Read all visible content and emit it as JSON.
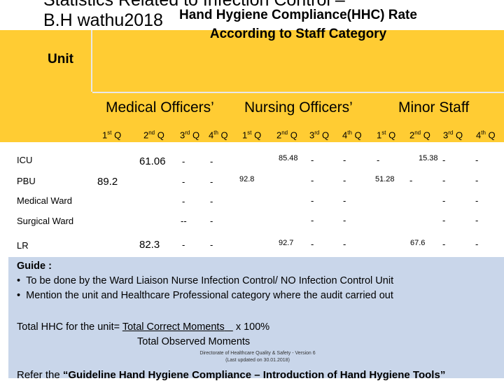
{
  "title": {
    "line1": "Statistics Related to Infection Control –",
    "line2": "B.H wathu2018"
  },
  "header": {
    "unit_label": "Unit",
    "table_title_line1": "Hand Hygiene Compliance(HHC) Rate",
    "table_title_line2": "According to Staff Category"
  },
  "categories": [
    "Medical Officers’",
    "Nursing Officers’",
    "Minor Staff"
  ],
  "quarters": [
    {
      "n": "1",
      "s": "st",
      "q": " Q"
    },
    {
      "n": "2",
      "s": "nd",
      "q": " Q"
    },
    {
      "n": "3",
      "s": "rd",
      "q": " Q"
    },
    {
      "n": "4",
      "s": "th",
      "q": " Q"
    },
    {
      "n": "1",
      "s": "st",
      "q": " Q"
    },
    {
      "n": "2",
      "s": "nd",
      "q": " Q"
    },
    {
      "n": "3",
      "s": "rd",
      "q": " Q"
    },
    {
      "n": "4",
      "s": "th",
      "q": " Q"
    },
    {
      "n": "1",
      "s": "st",
      "q": " Q"
    },
    {
      "n": "2",
      "s": "nd",
      "q": " Q"
    },
    {
      "n": "3",
      "s": "rd",
      "q": " Q"
    },
    {
      "n": "4",
      "s": "th",
      "q": " Q"
    }
  ],
  "units": [
    "ICU",
    "PBU",
    "Medical Ward",
    "Surgical Ward",
    "LR"
  ],
  "values": {
    "mo_q2_icu": "61.06",
    "mo_q1_pbu": "89.2",
    "mo_q2_lr": "82.3",
    "mo_q3": [
      "-",
      "-",
      "-",
      "--",
      "-"
    ],
    "mo_q4": [
      "-",
      "-",
      "-",
      "-",
      "-"
    ],
    "no_q1_pbu": "92.8",
    "no_q2_icu": "85.48",
    "no_q2_lr": "92.7",
    "no_q3": [
      "-",
      "-",
      "-",
      "-",
      "-"
    ],
    "no_q4": [
      "-",
      "-",
      "-",
      "-",
      "-"
    ],
    "ms_q1_icu": "-",
    "ms_q1_pbu": "51.28",
    "ms_q2_icu": "15.38",
    "ms_q2_pbu": "-",
    "ms_q2_lr": "67.6",
    "ms_q3": [
      "-",
      "-",
      "-",
      "-",
      "-"
    ],
    "ms_q4": [
      "-",
      "-",
      "-",
      "-",
      "-"
    ]
  },
  "guide": {
    "heading": "Guide :",
    "bullet1": "To be done by the Ward Liaison Nurse Infection Control/ NO Infection Control Unit",
    "bullet2": "Mention the unit and Healthcare Professional category where the audit carried out",
    "bullet_char": "•"
  },
  "formula": {
    "lead": "Total HHC for the unit= ",
    "numerator": "Total Correct Moments",
    "times": " x 100%",
    "denominator": "Total Observed Moments"
  },
  "footer": {
    "line1": "Directorate of Healthcare Quality & Safety - Version 6",
    "line2": "(Last updated on 30.01.2018)"
  },
  "refer": {
    "lead": "Refer the ",
    "bold": "“Guideline Hand Hygiene Compliance – Introduction of Hand Hygiene Tools”"
  }
}
